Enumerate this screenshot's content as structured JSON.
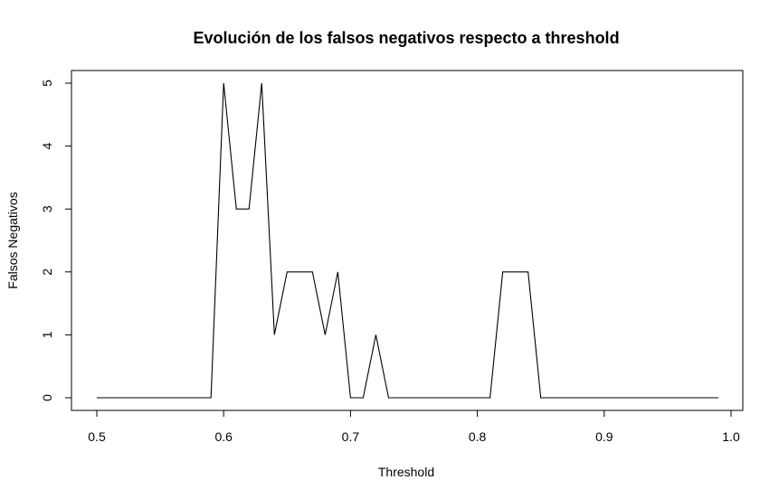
{
  "chart_data": {
    "type": "line",
    "title": "Evolución de los falsos negativos respecto a threshold",
    "xlabel": "Threshold",
    "ylabel": "Falsos Negativos",
    "xlim": [
      0.5,
      1.0
    ],
    "ylim": [
      0,
      5
    ],
    "xticks": [
      "0.5",
      "0.6",
      "0.7",
      "0.8",
      "0.9",
      "1.0"
    ],
    "yticks": [
      "0",
      "1",
      "2",
      "3",
      "4",
      "5"
    ],
    "grid": false,
    "x": [
      0.5,
      0.51,
      0.52,
      0.53,
      0.54,
      0.55,
      0.56,
      0.57,
      0.58,
      0.59,
      0.6,
      0.61,
      0.62,
      0.63,
      0.64,
      0.65,
      0.66,
      0.67,
      0.68,
      0.69,
      0.7,
      0.71,
      0.72,
      0.73,
      0.74,
      0.75,
      0.76,
      0.77,
      0.78,
      0.79,
      0.8,
      0.81,
      0.82,
      0.83,
      0.84,
      0.85,
      0.86,
      0.87,
      0.88,
      0.89,
      0.9,
      0.91,
      0.92,
      0.93,
      0.94,
      0.95,
      0.96,
      0.97,
      0.98,
      0.99
    ],
    "series": [
      {
        "values": [
          0,
          0,
          0,
          0,
          0,
          0,
          0,
          0,
          0,
          0,
          5,
          3,
          3,
          5,
          1,
          2,
          2,
          2,
          1,
          2,
          0,
          0,
          1,
          0,
          0,
          0,
          0,
          0,
          0,
          0,
          0,
          0,
          2,
          2,
          2,
          0,
          0,
          0,
          0,
          0,
          0,
          0,
          0,
          0,
          0,
          0,
          0,
          0,
          0,
          0
        ],
        "color": "#000000"
      }
    ]
  }
}
